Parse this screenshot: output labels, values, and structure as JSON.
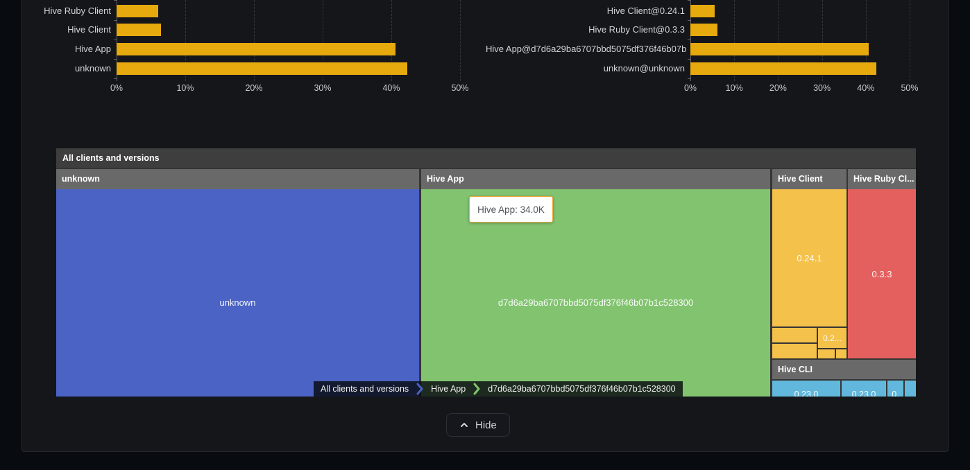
{
  "colors": {
    "bar": "#E6A90E",
    "treemap_blue": "#4A63C4",
    "treemap_green": "#82C370",
    "treemap_yellow": "#F4C14B",
    "treemap_red": "#E4605E",
    "treemap_light_blue": "#62B8DC",
    "tooltip_border": "#EDA73C"
  },
  "chart_data": [
    {
      "type": "bar",
      "orientation": "horizontal",
      "categories": [
        "Hive Ruby Client",
        "Hive Client",
        "Hive App",
        "unknown"
      ],
      "values": [
        6.1,
        6.5,
        40.6,
        42.3
      ],
      "unit": "percent",
      "xlim": [
        0,
        50
      ],
      "max": 50,
      "ticks": [
        "0%",
        "10%",
        "20%",
        "30%",
        "40%",
        "50%"
      ],
      "grid": "vertical-dashed",
      "bar_color": "#E6A90E",
      "title": "",
      "xlabel": "",
      "ylabel": ""
    },
    {
      "type": "bar",
      "orientation": "horizontal",
      "categories": [
        "Hive Client@0.24.1",
        "Hive Ruby Client@0.3.3",
        "Hive App@d7d6a29ba6707bbd5075df376f46b07b",
        "unknown@unknown"
      ],
      "values": [
        5.5,
        6.2,
        40.7,
        42.4
      ],
      "unit": "percent",
      "xlim": [
        0,
        50
      ],
      "max": 50,
      "ticks": [
        "0%",
        "10%",
        "20%",
        "30%",
        "40%",
        "50%"
      ],
      "grid": "vertical-dashed",
      "bar_color": "#E6A90E",
      "title": "",
      "xlabel": "",
      "ylabel": ""
    },
    {
      "type": "treemap",
      "title": "All clients and versions",
      "nodes": [
        {
          "name": "unknown",
          "label": "unknown",
          "color": "#4A63C4"
        },
        {
          "name": "Hive App",
          "label": "d7d6a29ba6707bbd5075df376f46b07b1c528300",
          "value": "34.0K",
          "color": "#82C370"
        },
        {
          "name": "Hive Client",
          "color": "#F4C14B",
          "children": [
            "0.24.1",
            "0.2..."
          ]
        },
        {
          "name": "Hive Ruby Cl...",
          "color": "#E4605E",
          "children": [
            "0.3.3"
          ]
        },
        {
          "name": "Hive CLI",
          "color": "#62B8DC",
          "children": [
            "0.23.0",
            "0.23.0",
            "0."
          ]
        }
      ]
    }
  ],
  "treemap": {
    "title": "All clients and versions",
    "tooltip": "Hive App: 34.0K",
    "sections": {
      "unknown": {
        "header": "unknown",
        "label": "unknown"
      },
      "hive_app": {
        "header": "Hive App",
        "label": "d7d6a29ba6707bbd5075df376f46b07b1c528300"
      },
      "hive_client": {
        "header": "Hive Client",
        "main": "0.24.1",
        "sub": "0.2..."
      },
      "hive_ruby": {
        "header": "Hive Ruby Cl...",
        "label": "0.3.3"
      },
      "hive_cli": {
        "header": "Hive CLI",
        "cells": [
          "0.23.0",
          "0.23.0",
          "0.",
          ""
        ]
      }
    },
    "breadcrumb": [
      "All clients and versions",
      "Hive App",
      "d7d6a29ba6707bbd5075df376f46b07b1c528300"
    ]
  },
  "footer": {
    "hide_label": "Hide"
  }
}
